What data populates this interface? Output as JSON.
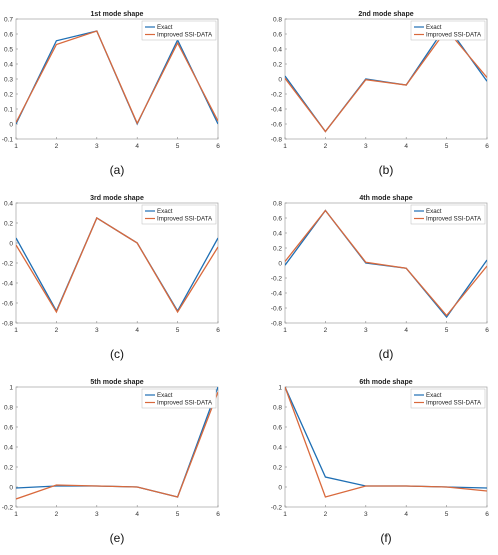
{
  "colors": {
    "exact": "#1f6fb4",
    "improved": "#d9693c",
    "axis": "#555555"
  },
  "chart_data": [
    {
      "type": "line",
      "panel": "(a)",
      "title": "1st mode shape",
      "x": [
        1,
        2,
        3,
        4,
        5,
        6
      ],
      "xticks": [
        "1",
        "2",
        "3",
        "4",
        "5",
        "6"
      ],
      "ylim": [
        -0.1,
        0.7
      ],
      "yticks": [
        "-0.1",
        "0",
        "0.1",
        "0.2",
        "0.3",
        "0.4",
        "0.5",
        "0.6",
        "0.7"
      ],
      "legend": "top-right",
      "grid": false,
      "series": [
        {
          "name": "Exact",
          "values": [
            0,
            0.555,
            0.62,
            0,
            0.56,
            0
          ]
        },
        {
          "name": "Improved SSI-DATA",
          "values": [
            0.01,
            0.53,
            0.62,
            0.005,
            0.54,
            0.02
          ]
        }
      ]
    },
    {
      "type": "line",
      "panel": "(b)",
      "title": "2nd mode shape",
      "x": [
        1,
        2,
        3,
        4,
        5,
        6
      ],
      "xticks": [
        "1",
        "2",
        "3",
        "4",
        "5",
        "6"
      ],
      "ylim": [
        -0.8,
        0.8
      ],
      "yticks": [
        "-0.8",
        "-0.6",
        "-0.4",
        "-0.2",
        "0",
        "0.2",
        "0.4",
        "0.6",
        "0.8"
      ],
      "legend": "top-right",
      "grid": false,
      "series": [
        {
          "name": "Exact",
          "values": [
            0.04,
            -0.7,
            0,
            -0.08,
            0.72,
            -0.03
          ]
        },
        {
          "name": "Improved SSI-DATA",
          "values": [
            0.01,
            -0.7,
            -0.01,
            -0.08,
            0.66,
            0.02
          ]
        }
      ]
    },
    {
      "type": "line",
      "panel": "(c)",
      "title": "3rd mode shape",
      "x": [
        1,
        2,
        3,
        4,
        5,
        6
      ],
      "xticks": [
        "1",
        "2",
        "3",
        "4",
        "5",
        "6"
      ],
      "ylim": [
        -0.8,
        0.4
      ],
      "yticks": [
        "-0.8",
        "-0.6",
        "-0.4",
        "-0.2",
        "0",
        "0.2",
        "0.4"
      ],
      "legend": "top-right",
      "grid": false,
      "series": [
        {
          "name": "Exact",
          "values": [
            0.05,
            -0.68,
            0.25,
            0,
            -0.68,
            0.05
          ]
        },
        {
          "name": "Improved SSI-DATA",
          "values": [
            -0.02,
            -0.69,
            0.25,
            0,
            -0.69,
            -0.04
          ]
        }
      ]
    },
    {
      "type": "line",
      "panel": "(d)",
      "title": "4th mode shape",
      "x": [
        1,
        2,
        3,
        4,
        5,
        6
      ],
      "xticks": [
        "1",
        "2",
        "3",
        "4",
        "5",
        "6"
      ],
      "ylim": [
        -0.8,
        0.8
      ],
      "yticks": [
        "-0.8",
        "-0.6",
        "-0.4",
        "-0.2",
        "0",
        "0.2",
        "0.4",
        "0.6",
        "0.8"
      ],
      "legend": "top-right",
      "grid": false,
      "series": [
        {
          "name": "Exact",
          "values": [
            -0.03,
            0.7,
            0,
            -0.07,
            -0.72,
            0.04
          ]
        },
        {
          "name": "Improved SSI-DATA",
          "values": [
            0.02,
            0.7,
            0.01,
            -0.07,
            -0.7,
            -0.04
          ]
        }
      ]
    },
    {
      "type": "line",
      "panel": "(e)",
      "title": "5th mode shape",
      "x": [
        1,
        2,
        3,
        4,
        5,
        6
      ],
      "xticks": [
        "1",
        "2",
        "3",
        "4",
        "5",
        "6"
      ],
      "ylim": [
        -0.2,
        1
      ],
      "yticks": [
        "-0.2",
        "0",
        "0.2",
        "0.4",
        "0.6",
        "0.8",
        "1"
      ],
      "legend": "top-right",
      "grid": false,
      "series": [
        {
          "name": "Exact",
          "values": [
            -0.01,
            0.01,
            0.01,
            0,
            -0.1,
            1
          ]
        },
        {
          "name": "Improved SSI-DATA",
          "values": [
            -0.12,
            0.02,
            0.01,
            0,
            -0.1,
            0.95
          ]
        }
      ]
    },
    {
      "type": "line",
      "panel": "(f)",
      "title": "6th mode shape",
      "x": [
        1,
        2,
        3,
        4,
        5,
        6
      ],
      "xticks": [
        "1",
        "2",
        "3",
        "4",
        "5",
        "6"
      ],
      "ylim": [
        -0.2,
        1
      ],
      "yticks": [
        "-0.2",
        "0",
        "0.2",
        "0.4",
        "0.6",
        "0.8",
        "1"
      ],
      "legend": "top-right",
      "grid": false,
      "series": [
        {
          "name": "Exact",
          "values": [
            1,
            0.1,
            0.01,
            0.01,
            0,
            -0.01
          ]
        },
        {
          "name": "Improved SSI-DATA",
          "values": [
            1,
            -0.1,
            0.01,
            0.01,
            0,
            -0.04
          ]
        }
      ]
    }
  ]
}
